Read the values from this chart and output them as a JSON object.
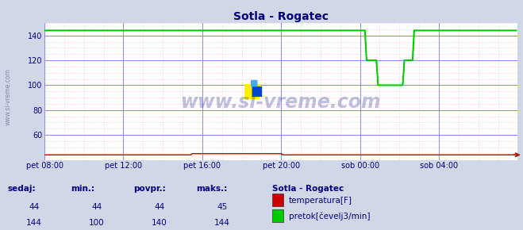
{
  "title": "Sotla - Rogatec",
  "bg_color": "#d0d8e8",
  "plot_bg_color": "#ffffff",
  "grid_color_major": "#8888ff",
  "grid_color_minor": "#ffaaaa",
  "xlim": [
    0,
    288
  ],
  "ylim": [
    40,
    150
  ],
  "yticks": [
    60,
    80,
    100,
    120,
    140
  ],
  "xtick_labels": [
    "pet 08:00",
    "pet 12:00",
    "pet 16:00",
    "pet 20:00",
    "sob 00:00",
    "sob 04:00"
  ],
  "xtick_positions": [
    0,
    48,
    96,
    144,
    192,
    240
  ],
  "temp_color": "#cc0000",
  "flow_color": "#00cc00",
  "watermark": "www.si-vreme.com",
  "watermark_color": "#000080",
  "watermark_alpha": 0.25,
  "sidebar_text": "www.si-vreme.com",
  "sidebar_color": "#8888aa",
  "table_headers": [
    "sedaj:",
    "min.:",
    "povpr.:",
    "maks.:"
  ],
  "table_col_values": [
    [
      "44",
      "144"
    ],
    [
      "44",
      "100"
    ],
    [
      "44",
      "140"
    ],
    [
      "45",
      "144"
    ]
  ],
  "legend_title": "Sotla - Rogatec",
  "legend_items": [
    "temperatura[F]",
    "pretok[čevelj3/min]"
  ],
  "legend_colors": [
    "#cc0000",
    "#00cc00"
  ],
  "text_color": "#000080"
}
